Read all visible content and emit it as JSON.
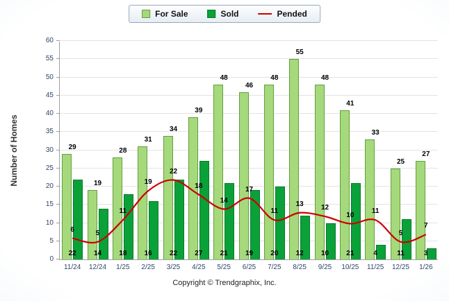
{
  "legend": {
    "for_sale": "For Sale",
    "sold": "Sold",
    "pended": "Pended"
  },
  "ylabel": "Number of Homes",
  "footer": "Copyright © Trendgraphix, Inc.",
  "colors": {
    "for_sale": "#a5d97c",
    "sold": "#0aa139",
    "pended": "#cc0000"
  },
  "chart_data": {
    "type": "bar",
    "categories": [
      "11/24",
      "12/24",
      "1/25",
      "2/25",
      "3/25",
      "4/25",
      "5/25",
      "6/25",
      "7/25",
      "8/25",
      "9/25",
      "10/25",
      "11/25",
      "12/25",
      "1/26"
    ],
    "series": [
      {
        "name": "For Sale",
        "type": "bar",
        "color": "#a5d97c",
        "values": [
          29,
          19,
          28,
          31,
          34,
          39,
          48,
          46,
          48,
          55,
          48,
          41,
          33,
          25,
          27
        ]
      },
      {
        "name": "Sold",
        "type": "bar",
        "color": "#0aa139",
        "values": [
          22,
          14,
          18,
          16,
          22,
          27,
          21,
          19,
          20,
          12,
          10,
          21,
          4,
          11,
          3
        ]
      },
      {
        "name": "Pended",
        "type": "line",
        "color": "#cc0000",
        "values": [
          6,
          5,
          11,
          19,
          22,
          18,
          14,
          17,
          11,
          13,
          12,
          10,
          11,
          5,
          7
        ]
      }
    ],
    "title": "",
    "xlabel": "",
    "ylabel": "Number of Homes",
    "ylim": [
      0,
      60
    ],
    "ytick_step": 5,
    "grid": true,
    "legend_position": "top"
  }
}
